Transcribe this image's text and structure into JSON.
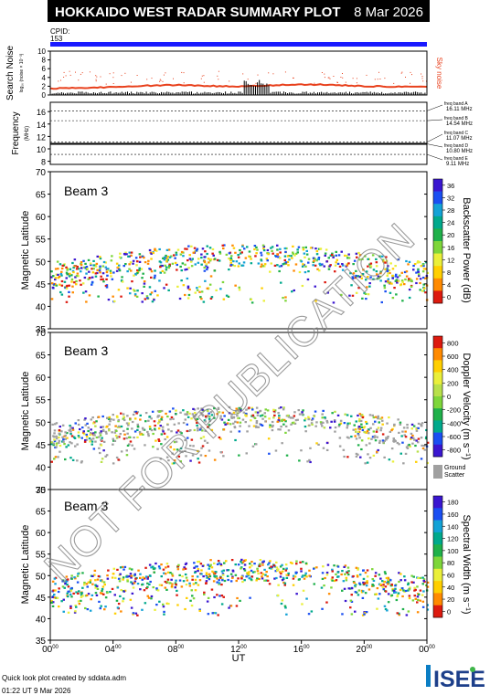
{
  "header": {
    "title": "HOKKAIDO WEST RADAR SUMMARY PLOT",
    "date": "8 Mar 2026",
    "cpid_label": "CPID:",
    "cpid_value": "153"
  },
  "watermark": "NOT FOR PUBLICATION",
  "footer": {
    "credit": "Quick look plot created by sddata.adm",
    "timestamp": "01:22 UT  9 Mar 2026"
  },
  "logo": "ISEE",
  "colors": {
    "cpid_bar": "#1a1aff",
    "noise_line": "#e8401c",
    "ground_scatter": "#a0a0a0"
  },
  "chart_data": [
    {
      "panel": "noise",
      "type": "line",
      "ylabel": "Search Noise",
      "ylabel_sub": "log₁₀ (noise × 10⁻³)",
      "right_label": "Sky noise",
      "yticks": [
        "0",
        "2",
        "4",
        "6",
        "8",
        "10"
      ],
      "ylim": [
        0,
        10
      ],
      "x": [
        0,
        2,
        4,
        6,
        8,
        10,
        12,
        14,
        16,
        18,
        20,
        22,
        24
      ],
      "values": [
        1.5,
        1.6,
        1.8,
        2.1,
        2.3,
        2.1,
        1.9,
        2.2,
        2.4,
        2.3,
        2.0,
        1.9,
        1.8
      ]
    },
    {
      "panel": "frequency",
      "type": "line",
      "ylabel": "Frequency",
      "ylabel_sub": "(MHz)",
      "yticks": [
        "8",
        "10",
        "12",
        "14",
        "16"
      ],
      "ylim": [
        7.5,
        17.5
      ],
      "value": 10.8,
      "freq_bands": [
        {
          "label": "freq band A",
          "value": "16.11 MHz",
          "freq": 16.11
        },
        {
          "label": "freq band B",
          "value": "14.54 MHz",
          "freq": 14.54
        },
        {
          "label": "freq band C",
          "value": "11.07 MHz",
          "freq": 11.07
        },
        {
          "label": "freq band D",
          "value": "10.80 MHz",
          "freq": 10.8
        },
        {
          "label": "freq band E",
          "value": "9.11 MHz",
          "freq": 9.11
        }
      ]
    },
    {
      "panel": "power",
      "type": "heatmap",
      "beam_label": "Beam  3",
      "ylabel": "Magnetic Latitude",
      "yticks": [
        "35",
        "40",
        "45",
        "50",
        "55",
        "60",
        "65",
        "70"
      ],
      "ylim": [
        35,
        70
      ],
      "colorbar_label": "Backscatter Power (dB)",
      "colorbar_ticks": [
        "0",
        "4",
        "8",
        "12",
        "16",
        "20",
        "24",
        "28",
        "32",
        "36"
      ]
    },
    {
      "panel": "velocity",
      "type": "heatmap",
      "beam_label": "Beam  3",
      "ylabel": "Magnetic Latitude",
      "yticks": [
        "35",
        "40",
        "45",
        "50",
        "55",
        "60",
        "65",
        "70"
      ],
      "ylim": [
        35,
        70
      ],
      "colorbar_label": "Doppler Velocity (m s⁻¹)",
      "colorbar_ticks": [
        "-800",
        "-600",
        "-400",
        "-200",
        "0",
        "200",
        "400",
        "600",
        "800"
      ],
      "ground_label": "Ground Scatter"
    },
    {
      "panel": "width",
      "type": "heatmap",
      "beam_label": "Beam  3",
      "ylabel": "Magnetic Latitude",
      "yticks": [
        "35",
        "40",
        "45",
        "50",
        "55",
        "60",
        "65",
        "70"
      ],
      "ylim": [
        35,
        70
      ],
      "colorbar_label": "Spectral Width (m s⁻¹)",
      "colorbar_ticks": [
        "0",
        "20",
        "40",
        "60",
        "80",
        "100",
        "120",
        "140",
        "160",
        "180"
      ]
    }
  ],
  "xaxis": {
    "label": "UT",
    "ticks": [
      {
        "h": "00",
        "m": "00"
      },
      {
        "h": "04",
        "m": "00"
      },
      {
        "h": "08",
        "m": "00"
      },
      {
        "h": "12",
        "m": "00"
      },
      {
        "h": "16",
        "m": "00"
      },
      {
        "h": "20",
        "m": "00"
      },
      {
        "h": "00",
        "m": "00"
      }
    ]
  }
}
